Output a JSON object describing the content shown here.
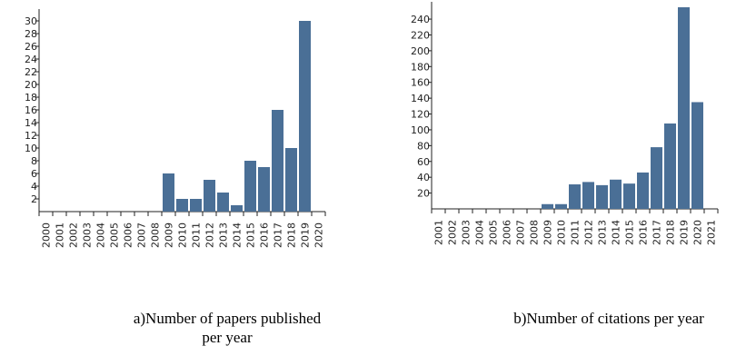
{
  "chart_data": [
    {
      "type": "bar",
      "caption_line1": "a)Number of papers published",
      "caption_line2": "per year",
      "bar_color": "#4a6f96",
      "categories": [
        "2000",
        "2001",
        "2002",
        "2003",
        "2004",
        "2005",
        "2006",
        "2007",
        "2008",
        "2009",
        "2010",
        "2011",
        "2012",
        "2013",
        "2014",
        "2015",
        "2016",
        "2017",
        "2018",
        "2019",
        "2020"
      ],
      "values": [
        0,
        0,
        0,
        0,
        0,
        0,
        0,
        0,
        0,
        6,
        2,
        2,
        5,
        3,
        1,
        8,
        7,
        16,
        10,
        30,
        0
      ],
      "ylim": [
        0,
        31
      ],
      "yticks": [
        2,
        4,
        6,
        8,
        10,
        12,
        14,
        16,
        18,
        20,
        22,
        24,
        26,
        28,
        30
      ]
    },
    {
      "type": "bar",
      "caption_line1": "b)Number of citations per year",
      "bar_color": "#4a6f96",
      "categories": [
        "2001",
        "2002",
        "2003",
        "2004",
        "2005",
        "2006",
        "2007",
        "2008",
        "2009",
        "2010",
        "2011",
        "2012",
        "2013",
        "2014",
        "2015",
        "2016",
        "2017",
        "2018",
        "2019",
        "2020",
        "2021"
      ],
      "values": [
        0,
        0,
        0,
        0,
        0,
        0,
        0,
        0,
        6,
        6,
        31,
        34,
        30,
        37,
        32,
        46,
        78,
        108,
        255,
        135,
        0
      ],
      "ylim": [
        0,
        255
      ],
      "yticks": [
        20,
        40,
        60,
        80,
        100,
        120,
        140,
        160,
        180,
        200,
        220,
        240
      ]
    }
  ]
}
